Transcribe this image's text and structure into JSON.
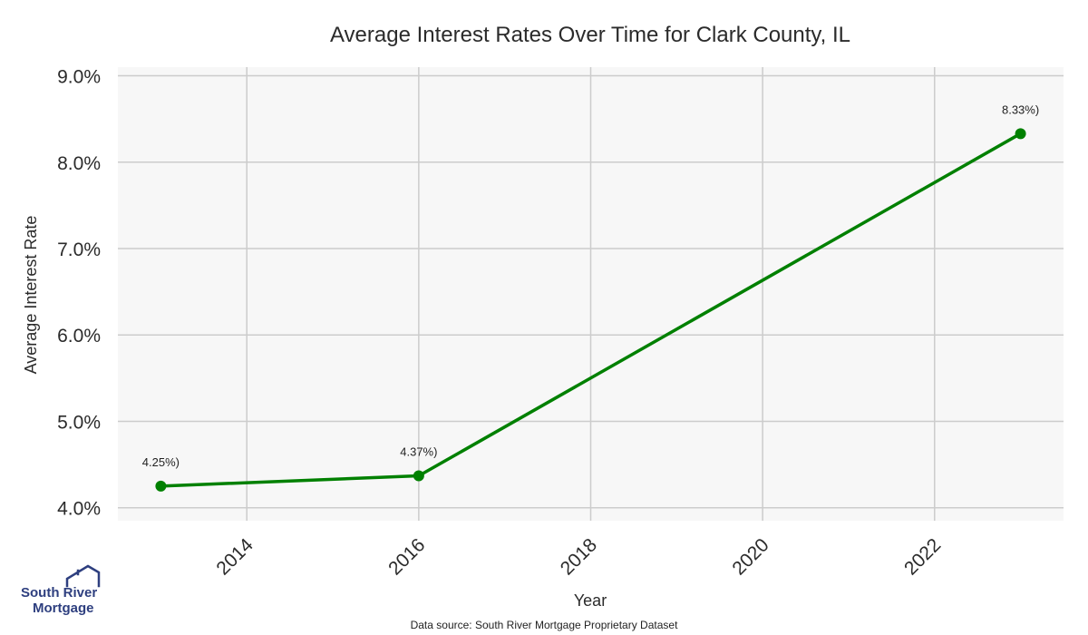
{
  "chart_data": {
    "type": "line",
    "title": "Average Interest Rates Over Time for Clark County, IL",
    "xlabel": "Year",
    "ylabel": "Average Interest Rate",
    "x": [
      2013,
      2016,
      2023
    ],
    "series": [
      {
        "values": [
          4.25,
          4.37,
          8.33
        ],
        "data_labels": [
          "4.25%)",
          "4.37%)",
          "8.33%)"
        ],
        "color": "#008000"
      }
    ],
    "xticks": [
      "2014",
      "2016",
      "2018",
      "2020",
      "2022"
    ],
    "yticks": [
      "4.0%",
      "5.0%",
      "6.0%",
      "7.0%",
      "8.0%",
      "9.0%"
    ],
    "xlim": [
      2012.5,
      2023.5
    ],
    "ylim": [
      3.85,
      9.1
    ],
    "grid": true,
    "background_color": "#f7f7f7",
    "grid_color": "#cccccc"
  },
  "logo": {
    "line1": "South River",
    "line2": "Mortgage",
    "icon": "house-roof-icon",
    "color": "#2e3f7f"
  },
  "source": "Data source: South River Mortgage Proprietary Dataset"
}
